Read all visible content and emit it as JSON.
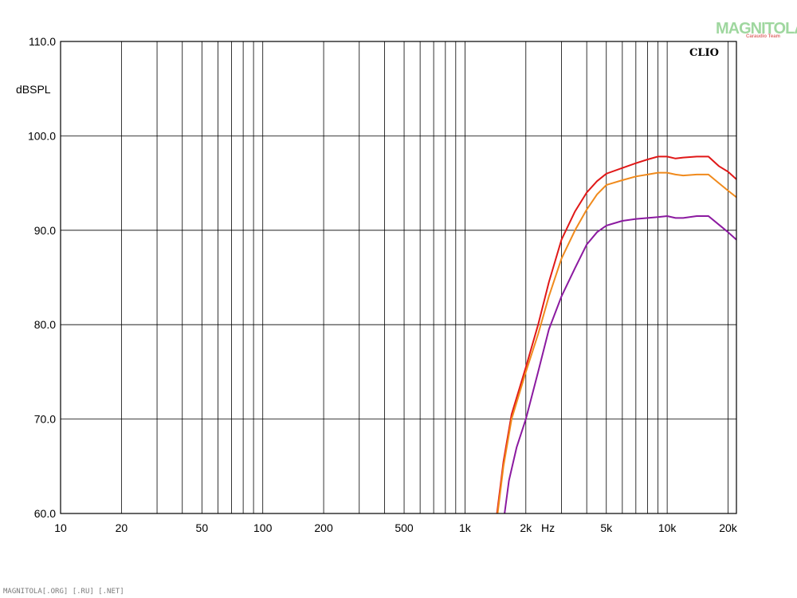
{
  "chart_data": {
    "type": "line",
    "ylabel": "dBSPL",
    "xunit": "Hz",
    "x_scale": "log",
    "xlim": [
      10,
      22000
    ],
    "ylim": [
      60,
      110
    ],
    "grid": true,
    "x_ticks": [
      {
        "value": 10,
        "label": "10"
      },
      {
        "value": 20,
        "label": "20"
      },
      {
        "value": 50,
        "label": "50"
      },
      {
        "value": 100,
        "label": "100"
      },
      {
        "value": 200,
        "label": "200"
      },
      {
        "value": 500,
        "label": "500"
      },
      {
        "value": 1000,
        "label": "1k"
      },
      {
        "value": 2000,
        "label": "2k"
      },
      {
        "value": 5000,
        "label": "5k"
      },
      {
        "value": 10000,
        "label": "10k"
      },
      {
        "value": 20000,
        "label": "20k"
      }
    ],
    "y_ticks": [
      {
        "value": 60,
        "label": "60.0"
      },
      {
        "value": 70,
        "label": "70.0"
      },
      {
        "value": 80,
        "label": "80.0"
      },
      {
        "value": 90,
        "label": "90.0"
      },
      {
        "value": 100,
        "label": "100.0"
      },
      {
        "value": 110,
        "label": "110.0"
      }
    ],
    "series": [
      {
        "color": "#e01818",
        "x": [
          1440,
          1550,
          1700,
          2000,
          2300,
          2600,
          3000,
          3500,
          4000,
          4500,
          5000,
          6000,
          7000,
          8000,
          9000,
          10000,
          11000,
          12000,
          14000,
          16000,
          18000,
          20000,
          22000
        ],
        "y": [
          60,
          65.5,
          70.5,
          75.5,
          80,
          84.5,
          89,
          92,
          94,
          95.2,
          96,
          96.6,
          97.1,
          97.5,
          97.8,
          97.8,
          97.6,
          97.7,
          97.8,
          97.8,
          96.8,
          96.2,
          95.4
        ]
      },
      {
        "color": "#f08a1c",
        "x": [
          1450,
          1550,
          1700,
          2000,
          2300,
          2600,
          3000,
          3500,
          4000,
          4500,
          5000,
          6000,
          7000,
          8000,
          9000,
          10000,
          11000,
          12000,
          14000,
          16000,
          18000,
          20000,
          22000
        ],
        "y": [
          60,
          65,
          70,
          75,
          79,
          83,
          87,
          90,
          92.2,
          93.8,
          94.8,
          95.3,
          95.7,
          95.9,
          96.1,
          96.1,
          95.9,
          95.8,
          95.9,
          95.9,
          95,
          94.2,
          93.5
        ]
      },
      {
        "color": "#8b1aa0",
        "x": [
          1570,
          1650,
          1800,
          2000,
          2300,
          2600,
          3000,
          3500,
          4000,
          4500,
          5000,
          6000,
          7000,
          8000,
          9000,
          10000,
          11000,
          12000,
          14000,
          16000,
          18000,
          20000,
          22000
        ],
        "y": [
          60,
          63.5,
          67,
          70,
          75,
          79.5,
          83,
          86,
          88.5,
          89.8,
          90.5,
          91,
          91.2,
          91.3,
          91.4,
          91.5,
          91.3,
          91.3,
          91.5,
          91.5,
          90.6,
          89.8,
          89
        ]
      }
    ]
  },
  "brand": "CLIO",
  "watermark": {
    "main": "MAGNITOLA",
    "sub": "Caraudio Team"
  },
  "footer": "MAGNITOLA[.ORG] [.RU] [.NET]"
}
